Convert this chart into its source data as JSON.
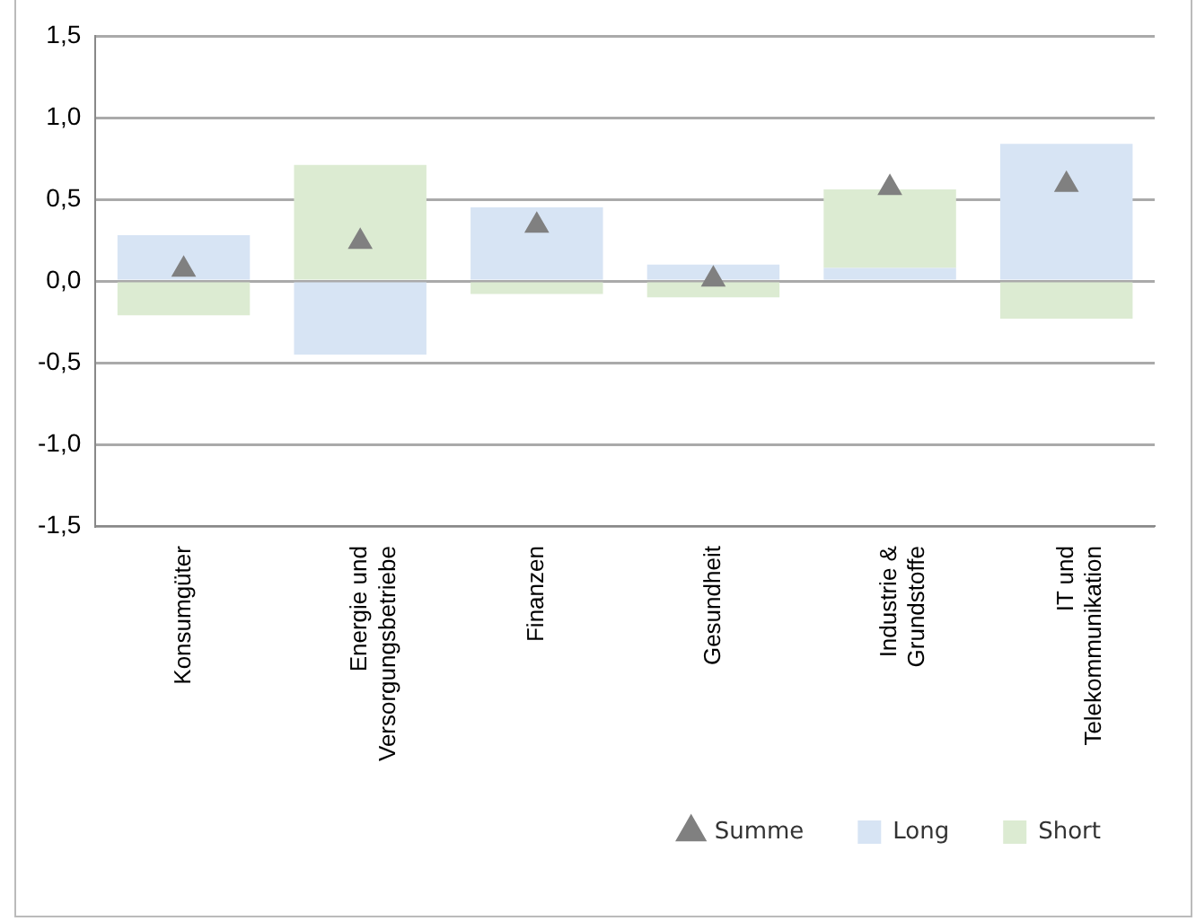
{
  "chart_data": {
    "type": "bar",
    "stacked": true,
    "categories": [
      "Konsumgüter",
      "Energie und Versorgungsbetriebe",
      "Finanzen",
      "Gesundheit",
      "Industrie & Grundstoffe",
      "IT und Telekommunikation"
    ],
    "series": [
      {
        "name": "Long",
        "color": "#d7e4f4",
        "values": [
          0.28,
          -0.45,
          0.45,
          0.1,
          0.08,
          0.84
        ]
      },
      {
        "name": "Short",
        "color": "#dcebd2",
        "values": [
          -0.21,
          0.71,
          -0.08,
          -0.1,
          0.48,
          -0.23
        ]
      },
      {
        "name": "Summe",
        "type": "scatter",
        "marker": "triangle",
        "color": "#808080",
        "values": [
          0.07,
          0.24,
          0.34,
          0.01,
          0.57,
          0.59
        ]
      }
    ],
    "ylim": [
      -1.5,
      1.5
    ],
    "yticks": [
      {
        "value": -1.5,
        "label": "-1,5"
      },
      {
        "value": -1,
        "label": "-1,0"
      },
      {
        "value": -0.5,
        "label": "-0,5"
      },
      {
        "value": 0,
        "label": "0,0"
      },
      {
        "value": 0.5,
        "label": "0,5"
      },
      {
        "value": 1,
        "label": "1,0"
      },
      {
        "value": 1.5,
        "label": "1,5"
      }
    ],
    "grid": "y",
    "legend": "bottom right"
  }
}
